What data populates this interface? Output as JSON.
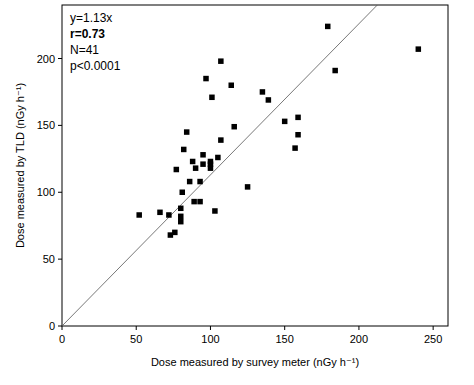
{
  "chart_data": {
    "type": "scatter",
    "x_label": "Dose measured by survey meter (nGy h⁻¹)",
    "y_label": "Dose measured by TLD (nGy h⁻¹)",
    "annotations": [
      "y=1.13x",
      "r=0.73",
      "N=41",
      "p<0.0001"
    ],
    "reference_line": {
      "slope": 1.13
    },
    "x": [
      52,
      66,
      72,
      73,
      76,
      77,
      80,
      80,
      80,
      81,
      82,
      84,
      86,
      88,
      89,
      90,
      93,
      93,
      95,
      95,
      97,
      100,
      100,
      100,
      101,
      103,
      105,
      107,
      107,
      114,
      116,
      125,
      135,
      139,
      150,
      157,
      159,
      159,
      179,
      184,
      240
    ],
    "values": [
      83,
      85,
      83,
      68,
      70,
      117,
      88,
      82,
      78,
      100,
      132,
      145,
      108,
      123,
      93,
      118,
      108,
      93,
      128,
      121,
      185,
      118,
      121,
      123,
      171,
      86,
      126,
      198,
      139,
      180,
      149,
      104,
      175,
      169,
      153,
      133,
      143,
      156,
      224,
      191,
      207
    ],
    "color": "#000000",
    "marker": "square",
    "xlim": [
      0,
      260
    ],
    "ylim": [
      0,
      240
    ],
    "xticks": [
      0,
      50,
      100,
      150,
      200,
      250
    ],
    "yticks": [
      0,
      50,
      100,
      150,
      200
    ],
    "grid": false
  }
}
